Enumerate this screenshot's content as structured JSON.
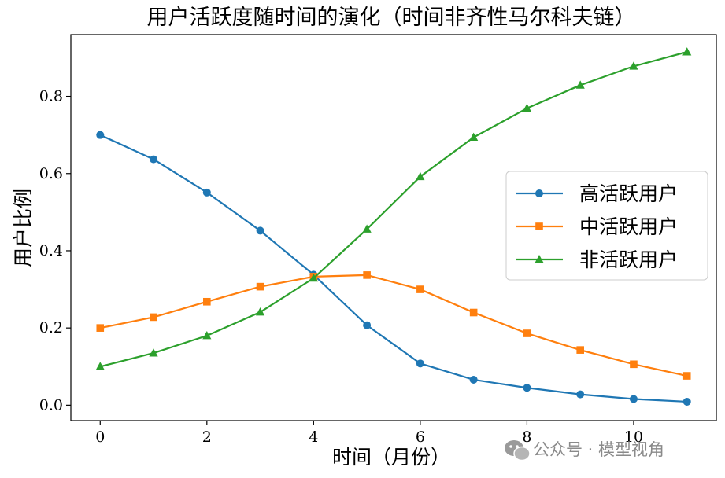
{
  "chart_data": {
    "type": "line",
    "title": "用户活跃度随时间的演化（时间非齐性马尔科夫链）",
    "xlabel": "时间（月份）",
    "ylabel": "用户比例",
    "x": [
      0,
      1,
      2,
      3,
      4,
      5,
      6,
      7,
      8,
      9,
      10,
      11
    ],
    "xlim": [
      -0.55,
      11.55
    ],
    "ylim": [
      -0.04,
      0.96
    ],
    "xticks": [
      0,
      2,
      4,
      6,
      8,
      10
    ],
    "xtick_labels": [
      "0",
      "2",
      "4",
      "6",
      "8",
      "10"
    ],
    "yticks": [
      0.0,
      0.2,
      0.4,
      0.6,
      0.8
    ],
    "ytick_labels": [
      "0.0",
      "0.2",
      "0.4",
      "0.6",
      "0.8"
    ],
    "grid": false,
    "legend_position": "center-right",
    "series": [
      {
        "name": "高活跃用户",
        "color": "#1f77b4",
        "marker": "circle",
        "values": [
          0.7,
          0.637,
          0.551,
          0.452,
          0.338,
          0.207,
          0.108,
          0.066,
          0.045,
          0.028,
          0.016,
          0.009
        ]
      },
      {
        "name": "中活跃用户",
        "color": "#ff7f0e",
        "marker": "square",
        "values": [
          0.2,
          0.228,
          0.268,
          0.307,
          0.333,
          0.337,
          0.3,
          0.24,
          0.186,
          0.143,
          0.106,
          0.076
        ]
      },
      {
        "name": "非活跃用户",
        "color": "#2ca02c",
        "marker": "triangle",
        "values": [
          0.1,
          0.135,
          0.18,
          0.241,
          0.329,
          0.456,
          0.592,
          0.694,
          0.769,
          0.829,
          0.878,
          0.915
        ]
      }
    ]
  },
  "watermark": {
    "text": "公众号 · 模型视角",
    "icon": "wechat-icon"
  }
}
